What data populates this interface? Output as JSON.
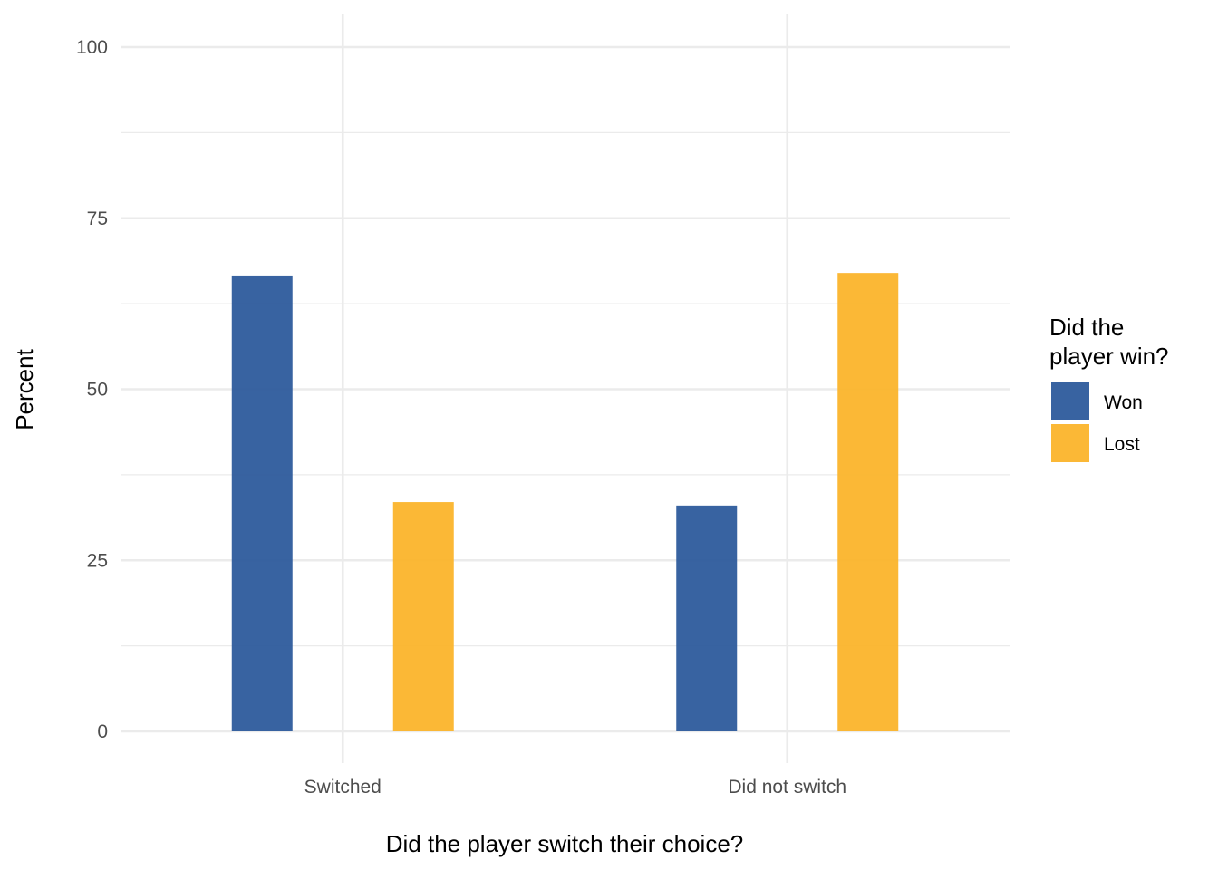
{
  "chart_data": {
    "type": "bar",
    "categories": [
      "Switched",
      "Did not switch"
    ],
    "series": [
      {
        "name": "Won",
        "values": [
          66.5,
          33.0
        ],
        "color": "#2D5B9C"
      },
      {
        "name": "Lost",
        "values": [
          33.5,
          67.0
        ],
        "color": "#FBB42B"
      }
    ],
    "xlabel": "Did the player switch their choice?",
    "ylabel": "Percent",
    "ylim": [
      0,
      100
    ],
    "yticks": [
      "0",
      "25",
      "50",
      "75",
      "100"
    ],
    "legend": {
      "title_lines": [
        "Did the",
        "player win?"
      ],
      "placement": "right"
    },
    "grid": true
  }
}
